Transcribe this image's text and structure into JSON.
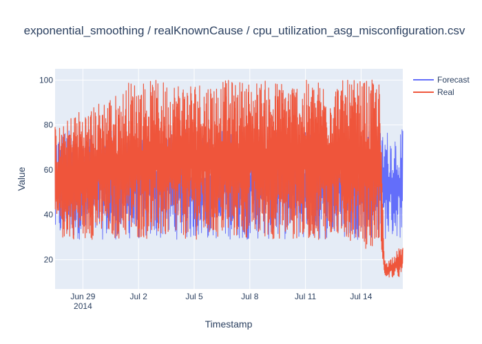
{
  "chart_data": {
    "type": "line",
    "title": "exponential_smoothing / realKnownCause / cpu_utilization_asg_misconfiguration.csv",
    "xlabel": "Timestamp",
    "ylabel": "Value",
    "xlim": [
      "2014-06-27T12:00",
      "2014-07-16T06:00"
    ],
    "ylim": [
      7,
      105
    ],
    "x_ticks": [
      {
        "at": "2014-06-29",
        "label": "Jun 29",
        "sublabel": "2014"
      },
      {
        "at": "2014-07-02",
        "label": "Jul 2",
        "sublabel": ""
      },
      {
        "at": "2014-07-05",
        "label": "Jul 5",
        "sublabel": ""
      },
      {
        "at": "2014-07-08",
        "label": "Jul 8",
        "sublabel": ""
      },
      {
        "at": "2014-07-11",
        "label": "Jul 11",
        "sublabel": ""
      },
      {
        "at": "2014-07-14",
        "label": "Jul 14",
        "sublabel": ""
      }
    ],
    "y_ticks": [
      20,
      40,
      60,
      80,
      100
    ],
    "grid": true,
    "legend_position": "top-right",
    "series": [
      {
        "name": "Forecast",
        "color": "#636efa",
        "x": [
          "2014-06-27T12:00",
          "2014-06-28T00:00",
          "2014-06-29T00:00",
          "2014-06-30T00:00",
          "2014-07-01T00:00",
          "2014-07-02T00:00",
          "2014-07-03T00:00",
          "2014-07-04T00:00",
          "2014-07-05T00:00",
          "2014-07-06T00:00",
          "2014-07-07T00:00",
          "2014-07-08T00:00",
          "2014-07-09T00:00",
          "2014-07-10T00:00",
          "2014-07-11T00:00",
          "2014-07-12T00:00",
          "2014-07-13T00:00",
          "2014-07-14T00:00",
          "2014-07-14T18:00",
          "2014-07-15T00:00",
          "2014-07-15T12:00",
          "2014-07-16T06:00"
        ],
        "low": [
          29,
          29,
          29,
          29,
          29,
          29,
          29,
          29,
          29,
          29,
          29,
          29,
          29,
          29,
          29,
          29,
          29,
          29,
          29,
          29,
          29,
          29
        ],
        "high": [
          78,
          78,
          78,
          78,
          78,
          78,
          78,
          78,
          78,
          78,
          78,
          78,
          78,
          78,
          78,
          78,
          78,
          78,
          78,
          78,
          78,
          78
        ]
      },
      {
        "name": "Real",
        "color": "#ef553b",
        "x": [
          "2014-06-27T12:00",
          "2014-06-28T00:00",
          "2014-06-28T12:00",
          "2014-06-29T00:00",
          "2014-06-29T12:00",
          "2014-06-30T00:00",
          "2014-06-30T12:00",
          "2014-07-01T00:00",
          "2014-07-01T12:00",
          "2014-07-02T00:00",
          "2014-07-03T00:00",
          "2014-07-04T00:00",
          "2014-07-05T00:00",
          "2014-07-06T00:00",
          "2014-07-07T00:00",
          "2014-07-08T00:00",
          "2014-07-09T00:00",
          "2014-07-10T00:00",
          "2014-07-11T00:00",
          "2014-07-12T00:00",
          "2014-07-13T00:00",
          "2014-07-14T00:00",
          "2014-07-14T12:00",
          "2014-07-15T00:00",
          "2014-07-15T06:00",
          "2014-07-15T12:00",
          "2014-07-16T06:00"
        ],
        "low": [
          29,
          29,
          29,
          29,
          29,
          29,
          29,
          29,
          29,
          29,
          29,
          29,
          29,
          29,
          29,
          29,
          29,
          29,
          29,
          29,
          29,
          28,
          22,
          30,
          12,
          12,
          12
        ],
        "high": [
          80,
          80,
          87,
          87,
          88,
          92,
          94,
          94,
          100,
          100,
          100,
          100,
          100,
          100,
          100,
          100,
          100,
          100,
          100,
          100,
          100,
          100,
          100,
          100,
          20,
          20,
          27
        ]
      }
    ]
  }
}
